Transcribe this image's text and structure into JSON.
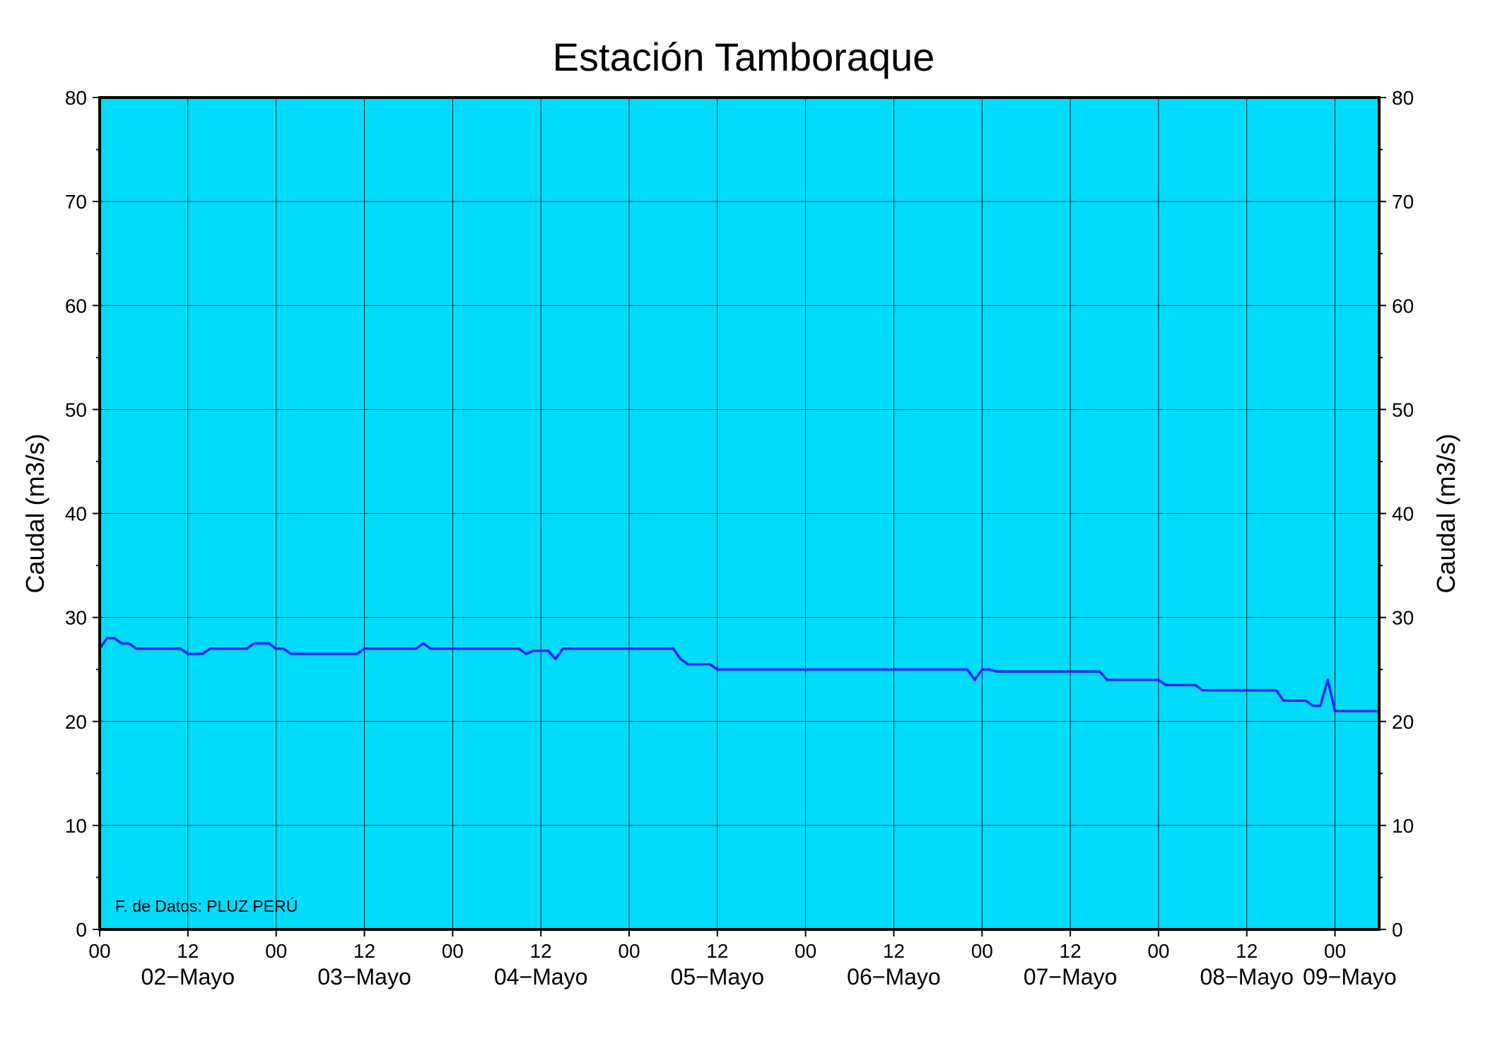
{
  "chart_data": {
    "type": "line",
    "title": "Estación Tamboraque",
    "ylabel": "Caudal (m3/s)",
    "ylabel_right": "Caudal (m3/s)",
    "ylim": [
      0,
      80
    ],
    "yticks": [
      0,
      10,
      20,
      30,
      40,
      50,
      60,
      70,
      80
    ],
    "y_minor_step": 5,
    "xlim_hours": [
      0,
      174
    ],
    "x_hour_ticks": [
      {
        "h": 0,
        "label": "00"
      },
      {
        "h": 12,
        "label": "12"
      },
      {
        "h": 24,
        "label": "00"
      },
      {
        "h": 36,
        "label": "12"
      },
      {
        "h": 48,
        "label": "00"
      },
      {
        "h": 60,
        "label": "12"
      },
      {
        "h": 72,
        "label": "00"
      },
      {
        "h": 84,
        "label": "12"
      },
      {
        "h": 96,
        "label": "00"
      },
      {
        "h": 108,
        "label": "12"
      },
      {
        "h": 120,
        "label": "00"
      },
      {
        "h": 132,
        "label": "12"
      },
      {
        "h": 144,
        "label": "00"
      },
      {
        "h": 156,
        "label": "12"
      },
      {
        "h": 168,
        "label": "00"
      }
    ],
    "x_day_labels": [
      {
        "h": 12,
        "label": "02−Mayo"
      },
      {
        "h": 36,
        "label": "03−Mayo"
      },
      {
        "h": 60,
        "label": "04−Mayo"
      },
      {
        "h": 84,
        "label": "05−Mayo"
      },
      {
        "h": 108,
        "label": "06−Mayo"
      },
      {
        "h": 132,
        "label": "07−Mayo"
      },
      {
        "h": 156,
        "label": "08−Mayo"
      },
      {
        "h": 170,
        "label": "09−Mayo"
      }
    ],
    "grid": true,
    "background_color": "#00dcfa",
    "line_color": "#2323ff",
    "series": [
      {
        "x_hours": [
          0,
          1,
          2,
          3,
          4,
          5,
          6,
          10,
          11,
          12,
          13,
          14,
          15,
          16,
          20,
          21,
          22,
          23,
          24,
          25,
          26,
          35,
          36,
          37,
          38,
          43,
          44,
          45,
          46,
          57,
          58,
          59,
          60,
          61,
          62,
          63,
          78,
          79,
          80,
          83,
          84,
          85,
          118,
          119,
          120,
          121,
          122,
          136,
          137,
          143,
          144,
          145,
          146,
          149,
          150,
          160,
          161,
          164,
          165,
          166,
          167,
          168,
          174
        ],
        "y": [
          27,
          28,
          28,
          27.5,
          27.5,
          27,
          27,
          27,
          27,
          26.5,
          26.5,
          26.5,
          27,
          27,
          27,
          27.5,
          27.5,
          27.5,
          27,
          27,
          26.5,
          26.5,
          27,
          27,
          27,
          27,
          27.5,
          27,
          27,
          27,
          26.5,
          26.8,
          26.8,
          26.8,
          26,
          27,
          27,
          26,
          25.5,
          25.5,
          25,
          25,
          25,
          24,
          25,
          25,
          24.8,
          24.8,
          24,
          24,
          24,
          23.5,
          23.5,
          23.5,
          23,
          23,
          22,
          22,
          21.5,
          21.5,
          24,
          21,
          21
        ]
      }
    ],
    "annotation": "F. de Datos: PLUZ PERÚ"
  }
}
